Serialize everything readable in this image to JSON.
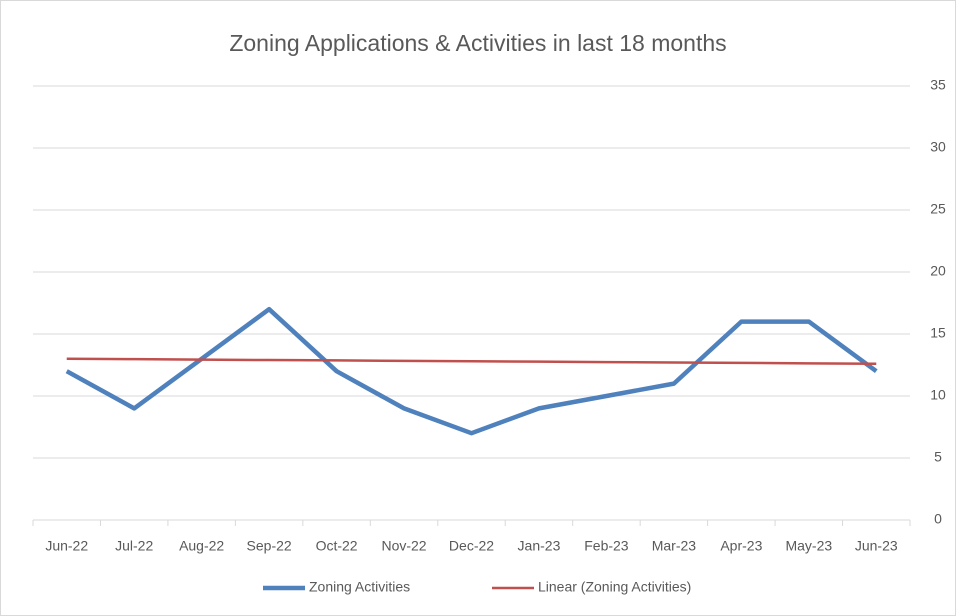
{
  "chart_data": {
    "type": "line",
    "title": "Zoning Applications & Activities in last 18 months",
    "categories": [
      "Jun-22",
      "Jul-22",
      "Aug-22",
      "Sep-22",
      "Oct-22",
      "Nov-22",
      "Dec-22",
      "Jan-23",
      "Feb-23",
      "Mar-23",
      "Apr-23",
      "May-23",
      "Jun-23"
    ],
    "series": [
      {
        "name": "Zoning Activities",
        "color": "#4f81bd",
        "values": [
          12,
          9,
          13,
          17,
          12,
          9,
          7,
          9,
          10,
          11,
          16,
          16,
          12
        ]
      },
      {
        "name": "Linear (Zoning Activities)",
        "color": "#c0504d",
        "values": [
          13,
          12.97,
          12.93,
          12.9,
          12.87,
          12.83,
          12.8,
          12.77,
          12.73,
          12.7,
          12.67,
          12.63,
          12.6
        ]
      }
    ],
    "ylim": [
      0,
      35
    ],
    "yticks": [
      0,
      5,
      10,
      15,
      20,
      25,
      30,
      35
    ],
    "y_axis_side": "right",
    "grid": true,
    "legend": "bottom"
  }
}
